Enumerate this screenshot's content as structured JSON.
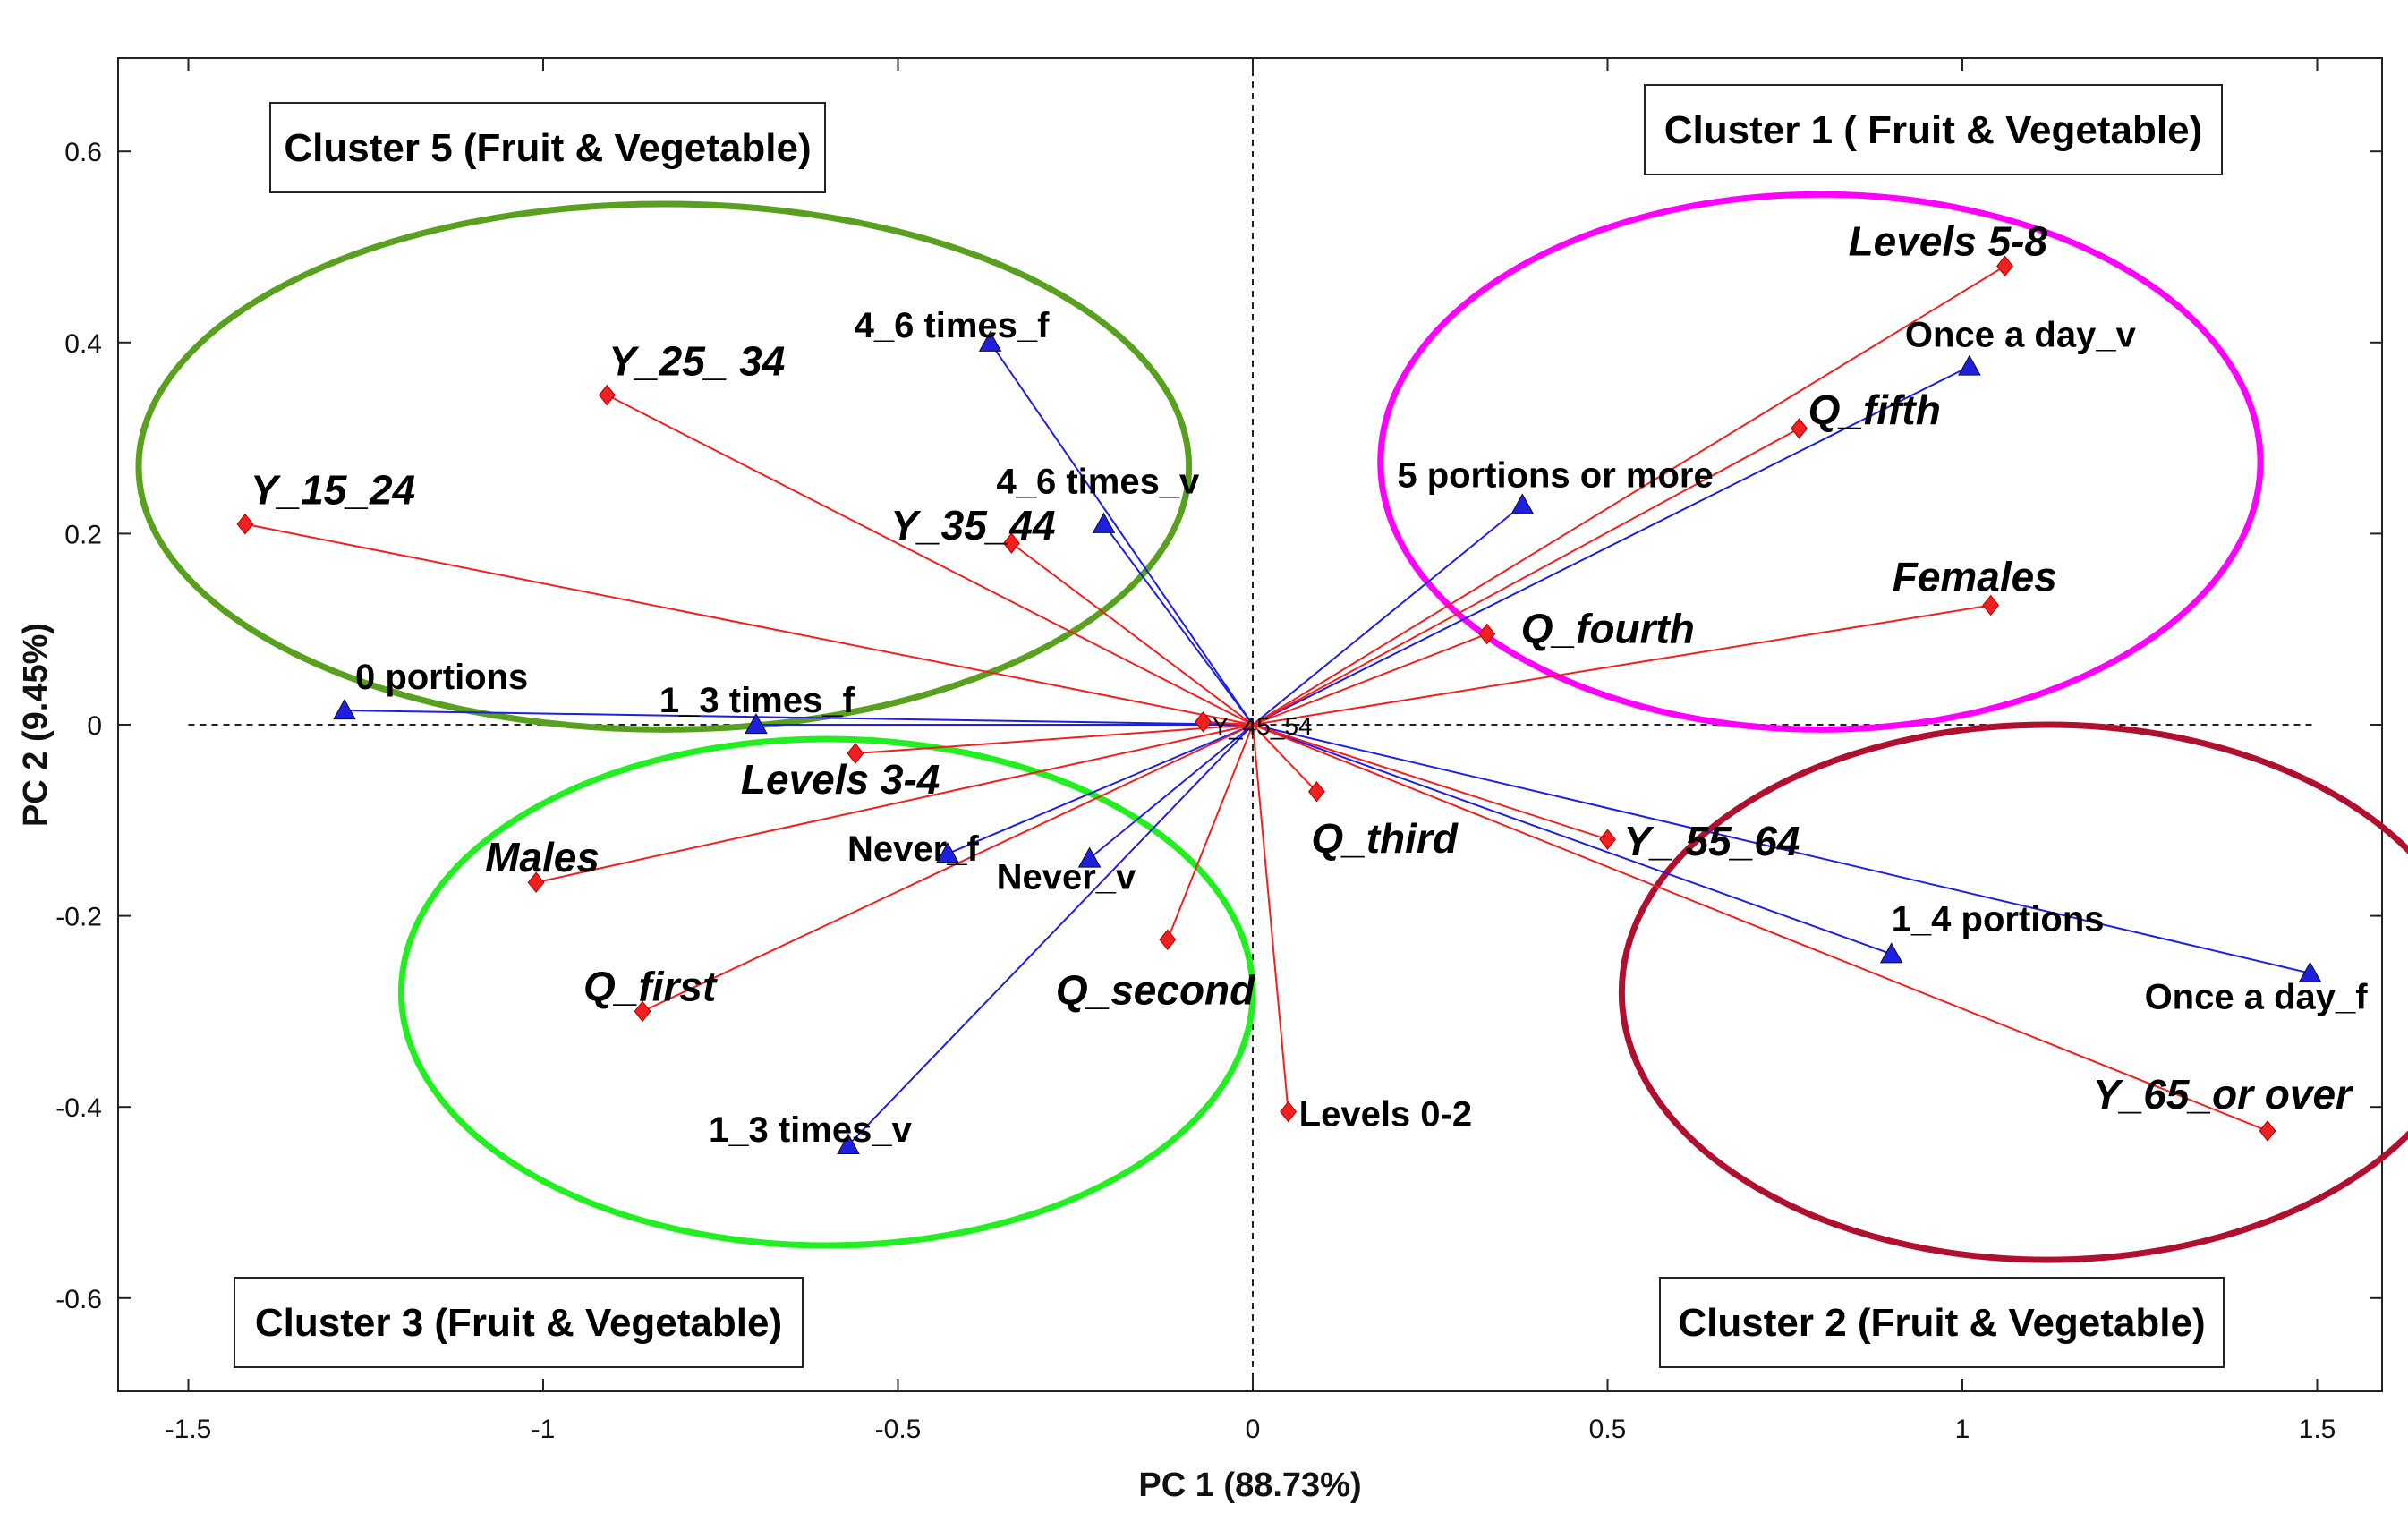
{
  "chart_data": {
    "type": "scatter",
    "subtype": "biplot",
    "title": "",
    "xlabel": "PC 1 (88.73%)",
    "ylabel": "PC 2 (9.45%)",
    "xlim": [
      -1.6,
      1.6
    ],
    "ylim": [
      -0.7,
      0.7
    ],
    "xticks": [
      -1.5,
      -1,
      -0.5,
      0,
      0.5,
      1,
      1.5
    ],
    "xtick_labels": [
      "-1.5",
      "-1",
      "-0.5",
      "0",
      "0.5",
      "1",
      "1.5"
    ],
    "yticks": [
      -0.6,
      -0.4,
      -0.2,
      0,
      0.2,
      0.4,
      0.6
    ],
    "ytick_labels": [
      "-0.6",
      "-0.4",
      "-0.2",
      "0",
      "0.2",
      "0.4",
      "0.6"
    ],
    "reference_lines": {
      "x": 0,
      "y": 0,
      "style": "dashed"
    },
    "series": [
      {
        "name": "Variables",
        "marker": "triangle",
        "color": "#1f1fe0",
        "points": [
          {
            "label": "0 portions",
            "x": -1.28,
            "y": 0.015
          },
          {
            "label": "1_3 times_f",
            "x": -0.7,
            "y": 0.0
          },
          {
            "label": "4_6 times_f",
            "x": -0.37,
            "y": 0.4
          },
          {
            "label": "4_6 times_v",
            "x": -0.21,
            "y": 0.21
          },
          {
            "label": "Never_f",
            "x": -0.43,
            "y": -0.135
          },
          {
            "label": "Never_v",
            "x": -0.23,
            "y": -0.14
          },
          {
            "label": "1_3 times_v",
            "x": -0.57,
            "y": -0.44
          },
          {
            "label": "5 portions or more",
            "x": 0.38,
            "y": 0.23
          },
          {
            "label": "Once a day_v",
            "x": 1.01,
            "y": 0.375
          },
          {
            "label": "1_4 portions",
            "x": 0.9,
            "y": -0.24
          },
          {
            "label": "Once a day_f",
            "x": 1.49,
            "y": -0.26
          }
        ]
      },
      {
        "name": "Objects",
        "marker": "diamond",
        "color": "#f02020",
        "points": [
          {
            "label": "Y_15_24",
            "x": -1.42,
            "y": 0.21
          },
          {
            "label": "Y_25_ 34",
            "x": -0.91,
            "y": 0.345
          },
          {
            "label": "Y_35_44",
            "x": -0.34,
            "y": 0.19
          },
          {
            "label": "Levels 3-4",
            "x": -0.56,
            "y": -0.03
          },
          {
            "label": "Males",
            "x": -1.01,
            "y": -0.165
          },
          {
            "label": "Q_first",
            "x": -0.86,
            "y": -0.3
          },
          {
            "label": "Q_second",
            "x": -0.12,
            "y": -0.225
          },
          {
            "label": "Y_45_54",
            "x": -0.07,
            "y": 0.003
          },
          {
            "label": "Q_third",
            "x": 0.09,
            "y": -0.07
          },
          {
            "label": "Levels 0-2",
            "x": 0.05,
            "y": -0.405
          },
          {
            "label": "Q_fourth",
            "x": 0.33,
            "y": 0.095
          },
          {
            "label": "Levels 5-8",
            "x": 1.06,
            "y": 0.48
          },
          {
            "label": "Q_fifth",
            "x": 0.77,
            "y": 0.31
          },
          {
            "label": "Females",
            "x": 1.04,
            "y": 0.125
          },
          {
            "label": "Y_ 55_64",
            "x": 0.5,
            "y": -0.12
          },
          {
            "label": "Y_65_or over",
            "x": 1.43,
            "y": -0.425
          }
        ]
      }
    ],
    "clusters": [
      {
        "label": "Cluster 1 ( Fruit & Vegetable)",
        "color": "#ff00ff",
        "center": [
          0.8,
          0.275
        ],
        "radii": [
          0.62,
          0.28
        ]
      },
      {
        "label": "Cluster 2 (Fruit & Vegetable)",
        "color": "#b01030",
        "center": [
          1.12,
          -0.28
        ],
        "radii": [
          0.6,
          0.28
        ]
      },
      {
        "label": "Cluster 3 (Fruit & Vegetable)",
        "color": "#22ee22",
        "center": [
          -0.6,
          -0.28
        ],
        "radii": [
          0.6,
          0.265
        ]
      },
      {
        "label": "Cluster 5 (Fruit & Vegetable)",
        "color": "#5aa020",
        "center": [
          -0.83,
          0.27
        ],
        "radii": [
          0.74,
          0.275
        ]
      }
    ]
  }
}
